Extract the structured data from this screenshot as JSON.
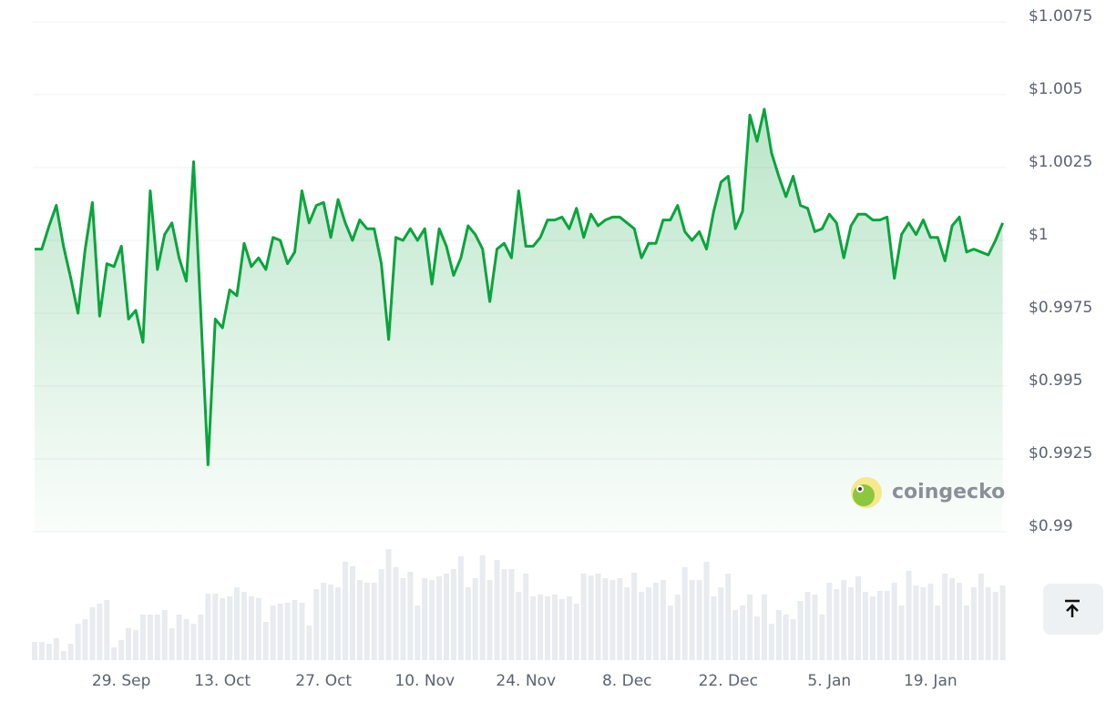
{
  "chart_data": {
    "type": "line",
    "color": "#0aa43d",
    "volume_color": "#e8ebef",
    "watermark": "coingecko",
    "ylim": [
      0.99,
      1.0075
    ],
    "yticks": [
      {
        "value": 0.99,
        "label": "$0.99"
      },
      {
        "value": 0.9925,
        "label": "$0.9925"
      },
      {
        "value": 0.995,
        "label": "$0.995"
      },
      {
        "value": 0.9975,
        "label": "$0.9975"
      },
      {
        "value": 1,
        "label": "$1"
      },
      {
        "value": 1.0025,
        "label": "$1.0025"
      },
      {
        "value": 1.005,
        "label": "$1.005"
      },
      {
        "value": 1.0075,
        "label": "$1.0075"
      }
    ],
    "grid": true,
    "categories": [
      null,
      null,
      null,
      null,
      null,
      null,
      null,
      null,
      null,
      null,
      null,
      null,
      "29. Sep",
      null,
      null,
      null,
      null,
      null,
      null,
      null,
      null,
      null,
      null,
      null,
      null,
      null,
      "13. Oct",
      null,
      null,
      null,
      null,
      null,
      null,
      null,
      null,
      null,
      null,
      null,
      null,
      null,
      "27. Oct",
      null,
      null,
      null,
      null,
      null,
      null,
      null,
      null,
      null,
      null,
      null,
      null,
      null,
      "10. Nov",
      null,
      null,
      null,
      null,
      null,
      null,
      null,
      null,
      null,
      null,
      null,
      null,
      null,
      "24. Nov",
      null,
      null,
      null,
      null,
      null,
      null,
      null,
      null,
      null,
      null,
      null,
      null,
      null,
      "8. Dec",
      null,
      null,
      null,
      null,
      null,
      null,
      null,
      null,
      null,
      null,
      null,
      null,
      null,
      "22. Dec",
      null,
      null,
      null,
      null,
      null,
      null,
      null,
      null,
      null,
      null,
      null,
      null,
      null,
      "5. Jan",
      null,
      null,
      null,
      null,
      null,
      null,
      null,
      null,
      null,
      null,
      null,
      null,
      null,
      "19. Jan",
      null,
      null,
      null,
      null,
      null,
      null,
      null,
      null,
      null,
      null
    ],
    "values": [
      0.9997,
      0.9997,
      1.0005,
      1.0012,
      0.9998,
      0.9987,
      0.9975,
      0.9997,
      1.0013,
      0.9974,
      0.9992,
      0.9991,
      0.9998,
      0.9973,
      0.9976,
      0.9965,
      1.0017,
      0.999,
      1.0002,
      1.0006,
      0.9994,
      0.9986,
      1.0027,
      0.9975,
      0.9923,
      0.9973,
      0.997,
      0.9983,
      0.9981,
      0.9999,
      0.9991,
      0.9994,
      0.999,
      1.0001,
      1.0,
      0.9992,
      0.9996,
      1.0017,
      1.0006,
      1.0012,
      1.0013,
      1.0001,
      1.0014,
      1.0006,
      1.0,
      1.0007,
      1.0004,
      1.0004,
      0.9992,
      0.9966,
      1.0001,
      1.0,
      1.0004,
      1.0,
      1.0004,
      0.9985,
      1.0004,
      0.9998,
      0.9988,
      0.9994,
      1.0005,
      1.0002,
      0.9997,
      0.9979,
      0.9997,
      0.9999,
      0.9994,
      1.0017,
      0.9998,
      0.9998,
      1.0001,
      1.0007,
      1.0007,
      1.0008,
      1.0004,
      1.0011,
      1.0001,
      1.0009,
      1.0005,
      1.0007,
      1.0008,
      1.0008,
      1.0006,
      1.0004,
      0.9994,
      0.9999,
      0.9999,
      1.0007,
      1.0007,
      1.0012,
      1.0003,
      1.0,
      1.0003,
      0.9997,
      1.001,
      1.002,
      1.0022,
      1.0004,
      1.001,
      1.0043,
      1.0034,
      1.0045,
      1.003,
      1.0022,
      1.0015,
      1.0022,
      1.0012,
      1.0011,
      1.0003,
      1.0004,
      1.0009,
      1.0006,
      0.9994,
      1.0005,
      1.0009,
      1.0009,
      1.0007,
      1.0007,
      1.0008,
      0.9987,
      1.0002,
      1.0006,
      1.0002,
      1.0007,
      1.0001,
      1.0001,
      0.9993,
      1.0005,
      1.0008,
      0.9996,
      0.9997,
      0.9996,
      0.9995,
      1.0,
      1.0006
    ],
    "volume": [
      20,
      20,
      18,
      24,
      10,
      18,
      40,
      45,
      58,
      62,
      66,
      14,
      22,
      35,
      33,
      50,
      50,
      50,
      55,
      35,
      50,
      45,
      40,
      50,
      73,
      73,
      68,
      70,
      80,
      75,
      70,
      68,
      42,
      60,
      62,
      63,
      66,
      63,
      38,
      78,
      85,
      83,
      80,
      108,
      103,
      88,
      85,
      85,
      100,
      122,
      102,
      90,
      97,
      60,
      90,
      88,
      92,
      95,
      100,
      114,
      80,
      90,
      115,
      88,
      110,
      100,
      100,
      75,
      95,
      70,
      72,
      70,
      72,
      67,
      70,
      62,
      95,
      93,
      95,
      90,
      88,
      90,
      80,
      96,
      75,
      80,
      85,
      88,
      60,
      72,
      102,
      88,
      88,
      108,
      70,
      80,
      95,
      55,
      60,
      72,
      48,
      72,
      40,
      55,
      50,
      45,
      65,
      75,
      72,
      50,
      85,
      78,
      88,
      80,
      92,
      75,
      70,
      76,
      76,
      85,
      60,
      98,
      82,
      80,
      84,
      60,
      95,
      90,
      85,
      60,
      80,
      95,
      80,
      75,
      82
    ]
  }
}
